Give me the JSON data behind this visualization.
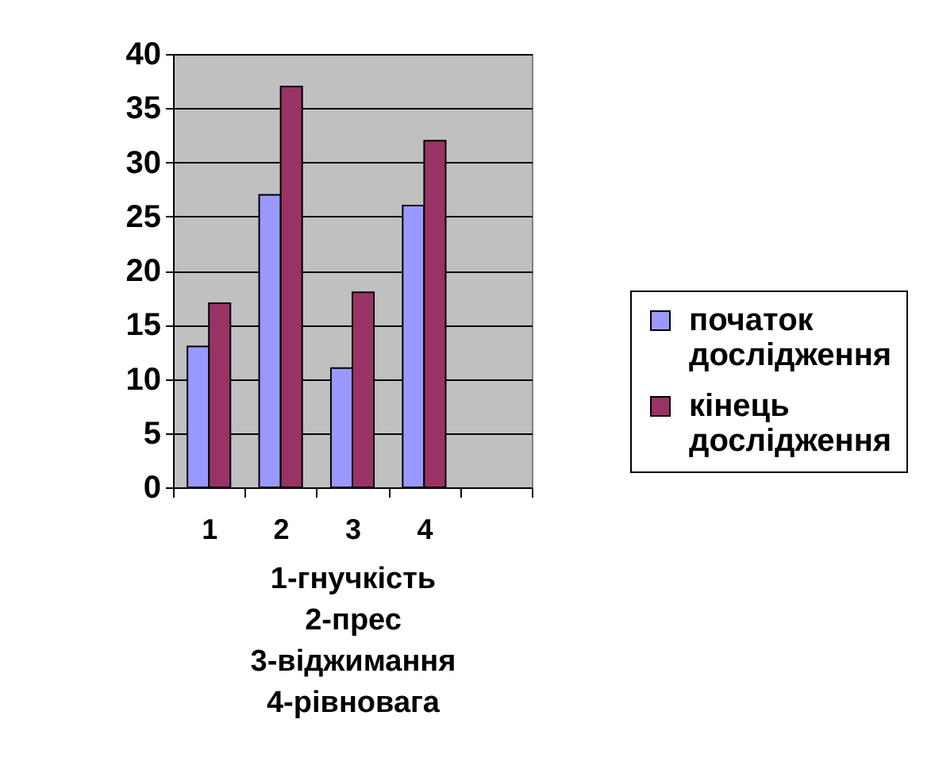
{
  "chart_data": {
    "type": "bar",
    "categories": [
      "1",
      "2",
      "3",
      "4",
      null
    ],
    "series": [
      {
        "name": "початок дослідження",
        "color": "#9999ff",
        "values": [
          13,
          27,
          11,
          26,
          null
        ]
      },
      {
        "name": "кінець дослідження",
        "color": "#993366",
        "values": [
          17,
          37,
          18,
          32,
          null
        ]
      }
    ],
    "xlabel": "1-гнучкість\n2-прес\n3-віджимання\n4-рівновага",
    "ylim": [
      0,
      40
    ],
    "yticks": [
      0,
      5,
      10,
      15,
      20,
      25,
      30,
      35,
      40
    ],
    "grid": "y",
    "legend": "right"
  }
}
